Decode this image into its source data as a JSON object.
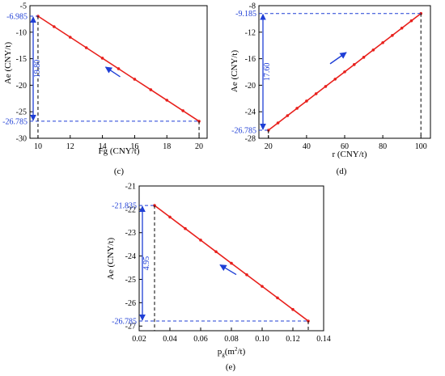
{
  "colors": {
    "line": "#e8201c",
    "marker": "#e8201c",
    "annotation": "#1f3fd6",
    "axis": "#000000",
    "guide": "#000000"
  },
  "chart_data": [
    {
      "panel_label": "(c)",
      "type": "line",
      "xlabel": "Fg (CNY/t)",
      "ylabel": "Ae (CNY/t)",
      "xlim": [
        9.5,
        20.5
      ],
      "ylim": [
        -30,
        -5
      ],
      "xticks": [
        10,
        12,
        14,
        16,
        18,
        20
      ],
      "yticks": [
        -5,
        -10,
        -15,
        -20,
        -25,
        -30
      ],
      "x": [
        10,
        11,
        12,
        13,
        14,
        15,
        16,
        17,
        18,
        19,
        20
      ],
      "y": [
        -6.985,
        -8.965,
        -10.945,
        -12.925,
        -14.905,
        -16.885,
        -18.865,
        -20.845,
        -22.825,
        -24.805,
        -26.785
      ],
      "annotations": {
        "top_value_label": "-6.985",
        "bottom_value_label": "-26.785",
        "difference_label": "19.80",
        "top_value": -6.985,
        "bottom_value": -26.785,
        "arrow_direction": "up-left"
      }
    },
    {
      "panel_label": "(d)",
      "type": "line",
      "xlabel": "r (CNY/t)",
      "ylabel": "Ae (CNY/t)",
      "xlim": [
        15,
        105
      ],
      "ylim": [
        -28,
        -8
      ],
      "xticks": [
        20,
        40,
        60,
        80,
        100
      ],
      "yticks": [
        -8,
        -12,
        -16,
        -20,
        -24,
        -28
      ],
      "x": [
        20,
        25,
        30,
        35,
        40,
        45,
        50,
        55,
        60,
        65,
        70,
        75,
        80,
        85,
        90,
        95,
        100
      ],
      "y": [
        -26.785,
        -25.685,
        -24.585,
        -23.485,
        -22.385,
        -21.285,
        -20.185,
        -19.085,
        -17.985,
        -16.885,
        -15.785,
        -14.685,
        -13.585,
        -12.485,
        -11.385,
        -10.285,
        -9.185
      ],
      "annotations": {
        "top_value_label": "-9.185",
        "bottom_value_label": "-26.785",
        "difference_label": "17.60",
        "top_value": -9.185,
        "bottom_value": -26.785,
        "arrow_direction": "up-right"
      }
    },
    {
      "panel_label": "(e)",
      "type": "line",
      "xlabel_main": "p",
      "xlabel_sub": "g",
      "xlabel_rest": "(m",
      "xlabel_sup": "2",
      "xlabel_end": "/t)",
      "ylabel": "Ae (CNY/t)",
      "xlim": [
        0.02,
        0.14
      ],
      "ylim": [
        -27.2,
        -21
      ],
      "xticks": [
        0.02,
        0.04,
        0.06,
        0.08,
        0.1,
        0.12,
        0.14
      ],
      "xtick_labels": [
        "0.02",
        "0.04",
        "0.06",
        "0.08",
        "0.10",
        "0.12",
        "0.14"
      ],
      "yticks": [
        -21,
        -22,
        -23,
        -24,
        -25,
        -26,
        -27
      ],
      "x": [
        0.03,
        0.04,
        0.05,
        0.06,
        0.07,
        0.08,
        0.09,
        0.1,
        0.11,
        0.12,
        0.13
      ],
      "y": [
        -21.835,
        -22.33,
        -22.825,
        -23.32,
        -23.815,
        -24.31,
        -24.805,
        -25.3,
        -25.795,
        -26.29,
        -26.785
      ],
      "annotations": {
        "top_value_label": "-21.835",
        "bottom_value_label": "-26.785",
        "difference_label": "4.95",
        "top_value": -21.835,
        "bottom_value": -26.785,
        "arrow_direction": "up-left"
      }
    }
  ]
}
